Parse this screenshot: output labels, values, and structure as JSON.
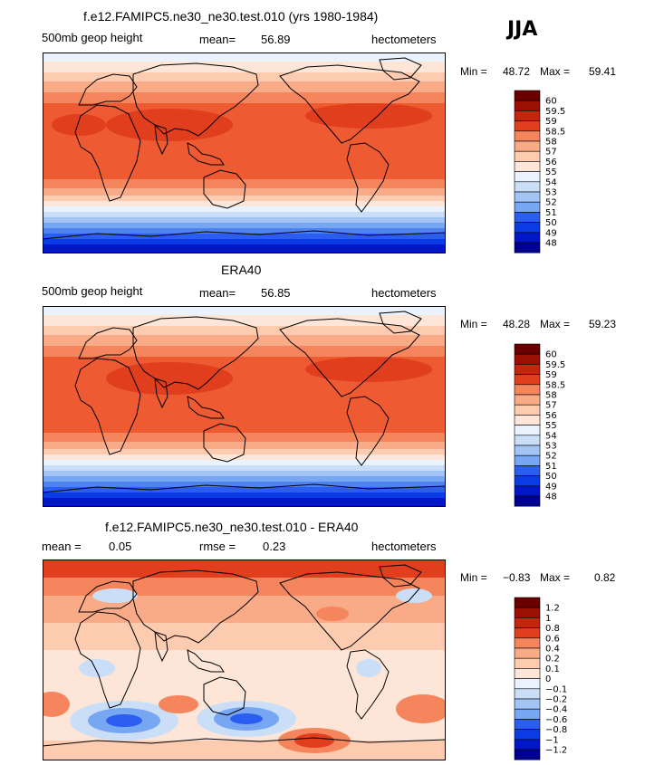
{
  "season": "JJA",
  "colors": {
    "total": [
      "#000090",
      "#0016c8",
      "#0a3ce6",
      "#2b5ef0",
      "#4c83f0",
      "#77a6f2",
      "#a2c4f5",
      "#cadef8",
      "#e9f2fd",
      "#fde6d8",
      "#fccbb0",
      "#f9ab87",
      "#f4855c",
      "#ee5b32",
      "#e03e1c",
      "#c3270c",
      "#9b1004",
      "#6a0000"
    ],
    "diff": [
      "#000090",
      "#0016c8",
      "#0a3ce6",
      "#2b5ef0",
      "#4c83f0",
      "#77a6f2",
      "#a2c4f5",
      "#cadef8",
      "#e9f2fd",
      "#fde6d8",
      "#fccbb0",
      "#f9ab87",
      "#f4855c",
      "#ee5b32",
      "#e03e1c",
      "#c3270c",
      "#9b1004",
      "#6a0000"
    ]
  },
  "chart_data": [
    {
      "type": "heatmap",
      "title": "f.e12.FAMIPC5.ne30_ne30.test.010 (yrs 1980-1984)",
      "left_label": "500mb geop height",
      "mean_label": "mean=",
      "mean_value": "56.89",
      "units": "hectometers",
      "min_label": "Min =",
      "min_value": "48.72",
      "max_label": "Max =",
      "max_value": "59.41",
      "legend_ticks": [
        "60",
        "59.5",
        "59",
        "58.5",
        "58",
        "57",
        "56",
        "55",
        "54",
        "53",
        "52",
        "51",
        "50",
        "49",
        "48"
      ]
    },
    {
      "type": "heatmap",
      "title": "ERA40",
      "left_label": "500mb geop height",
      "mean_label": "mean=",
      "mean_value": "56.85",
      "units": "hectometers",
      "min_label": "Min =",
      "min_value": "48.28",
      "max_label": "Max =",
      "max_value": "59.23",
      "legend_ticks": [
        "60",
        "59.5",
        "59",
        "58.5",
        "58",
        "57",
        "56",
        "55",
        "54",
        "53",
        "52",
        "51",
        "50",
        "49",
        "48"
      ]
    },
    {
      "type": "heatmap",
      "title": "f.e12.FAMIPC5.ne30_ne30.test.010 - ERA40",
      "left_label": "mean =",
      "mean_label": "",
      "mean_value": "0.05",
      "rmse_label": "rmse =",
      "rmse_value": "0.23",
      "units": "hectometers",
      "min_label": "Min =",
      "min_value": "−0.83",
      "max_label": "Max =",
      "max_value": "0.82",
      "legend_ticks": [
        "1.2",
        "1",
        "0.8",
        "0.6",
        "0.4",
        "0.2",
        "0.1",
        "0",
        "−0.1",
        "−0.2",
        "−0.4",
        "−0.6",
        "−0.8",
        "−1",
        "−1.2"
      ]
    }
  ]
}
